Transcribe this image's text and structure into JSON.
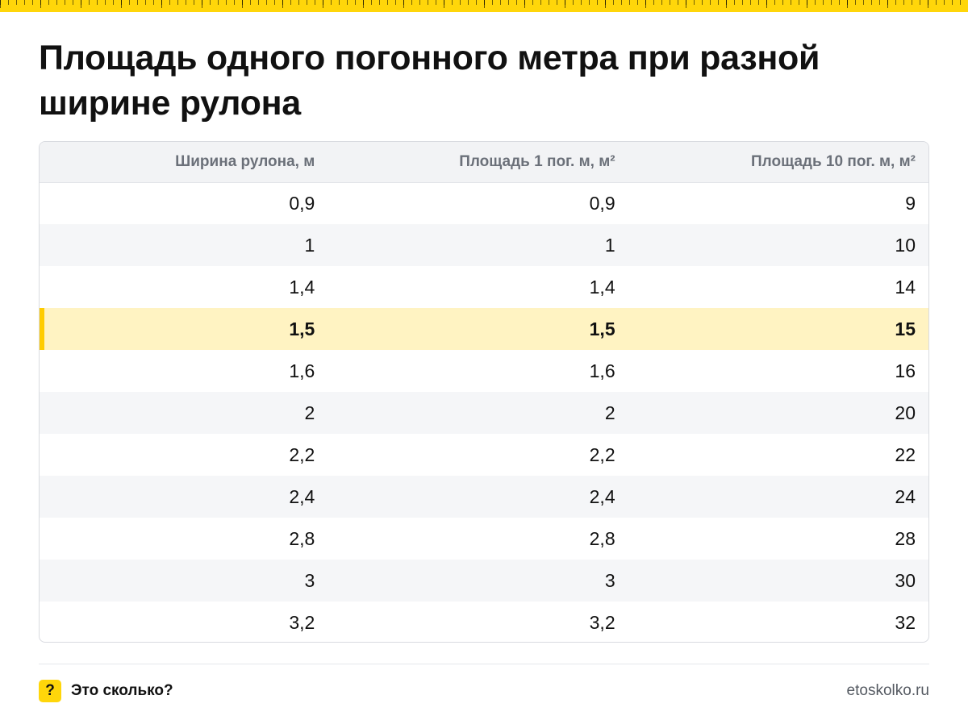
{
  "title": "Площадь одного погонного метра при разной ширине рулона",
  "table": {
    "headers": [
      "Ширина рулона, м",
      "Площадь 1 пог. м, м²",
      "Площадь 10 пог. м, м²"
    ],
    "rows": [
      [
        "0,9",
        "0,9",
        "9"
      ],
      [
        "1",
        "1",
        "10"
      ],
      [
        "1,4",
        "1,4",
        "14"
      ],
      [
        "1,5",
        "1,5",
        "15"
      ],
      [
        "1,6",
        "1,6",
        "16"
      ],
      [
        "2",
        "2",
        "20"
      ],
      [
        "2,2",
        "2,2",
        "22"
      ],
      [
        "2,4",
        "2,4",
        "24"
      ],
      [
        "2,8",
        "2,8",
        "28"
      ],
      [
        "3",
        "3",
        "30"
      ],
      [
        "3,2",
        "3,2",
        "32"
      ]
    ],
    "highlighted_row": 3
  },
  "footer": {
    "badge": "?",
    "brand": "Это сколько?",
    "site": "etoskolko.ru"
  },
  "colors": {
    "accent": "#ffd60a",
    "highlight_row": "#fff3c2",
    "header_bg": "#f2f3f5",
    "alt_row": "#f5f6f8"
  }
}
